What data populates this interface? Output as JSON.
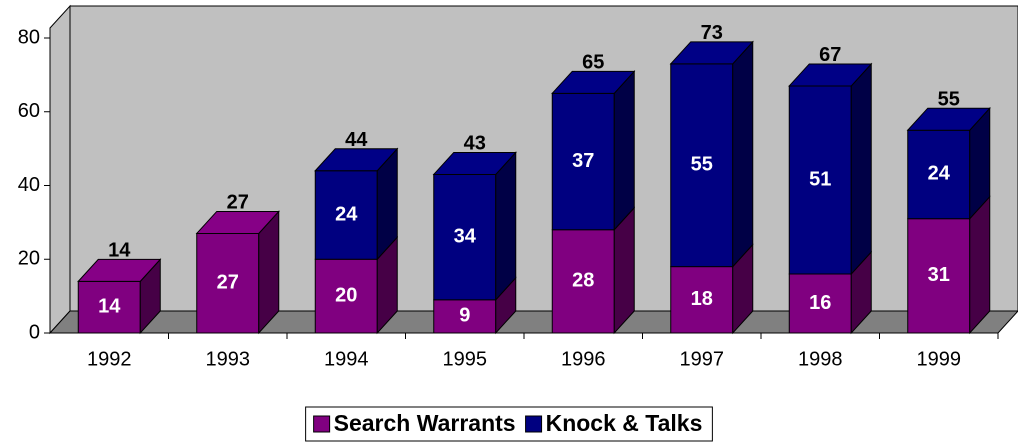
{
  "chart_data": {
    "type": "bar3d-stacked",
    "categories": [
      "1992",
      "1993",
      "1994",
      "1995",
      "1996",
      "1997",
      "1998",
      "1999"
    ],
    "series": [
      {
        "name": "Search Warrants",
        "color": "#800080",
        "values": [
          14,
          27,
          20,
          9,
          28,
          18,
          16,
          31
        ]
      },
      {
        "name": "Knock & Talks",
        "color": "#000080",
        "values": [
          0,
          0,
          24,
          34,
          37,
          55,
          51,
          24
        ]
      }
    ],
    "totals": [
      14,
      27,
      44,
      43,
      65,
      73,
      67,
      55
    ],
    "ylim": [
      0,
      80
    ],
    "yticks": [
      0,
      20,
      40,
      60,
      80
    ],
    "grid": false,
    "legend": "bottom"
  }
}
